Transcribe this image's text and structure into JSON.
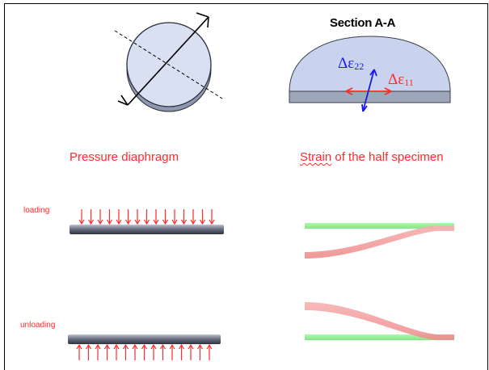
{
  "section_title": "Section A-A",
  "pressure_title": "Pressure diaphragm",
  "strain_title_word1": "Strain",
  "strain_title_rest": " of the half specimen",
  "loading_label": "loading",
  "unloading_label": "unloading",
  "eps22_label": "Δε",
  "eps22_sub": "22",
  "eps11_label": "Δε",
  "eps11_sub": "11",
  "arrow_count": 15,
  "colors": {
    "accent_red": "#ff2a2a",
    "strain_blue": "#1a1ae6",
    "green_band": "#8ff08f",
    "red_band": "#f7a0a0",
    "specimen_fill": "#c9d3ee"
  }
}
